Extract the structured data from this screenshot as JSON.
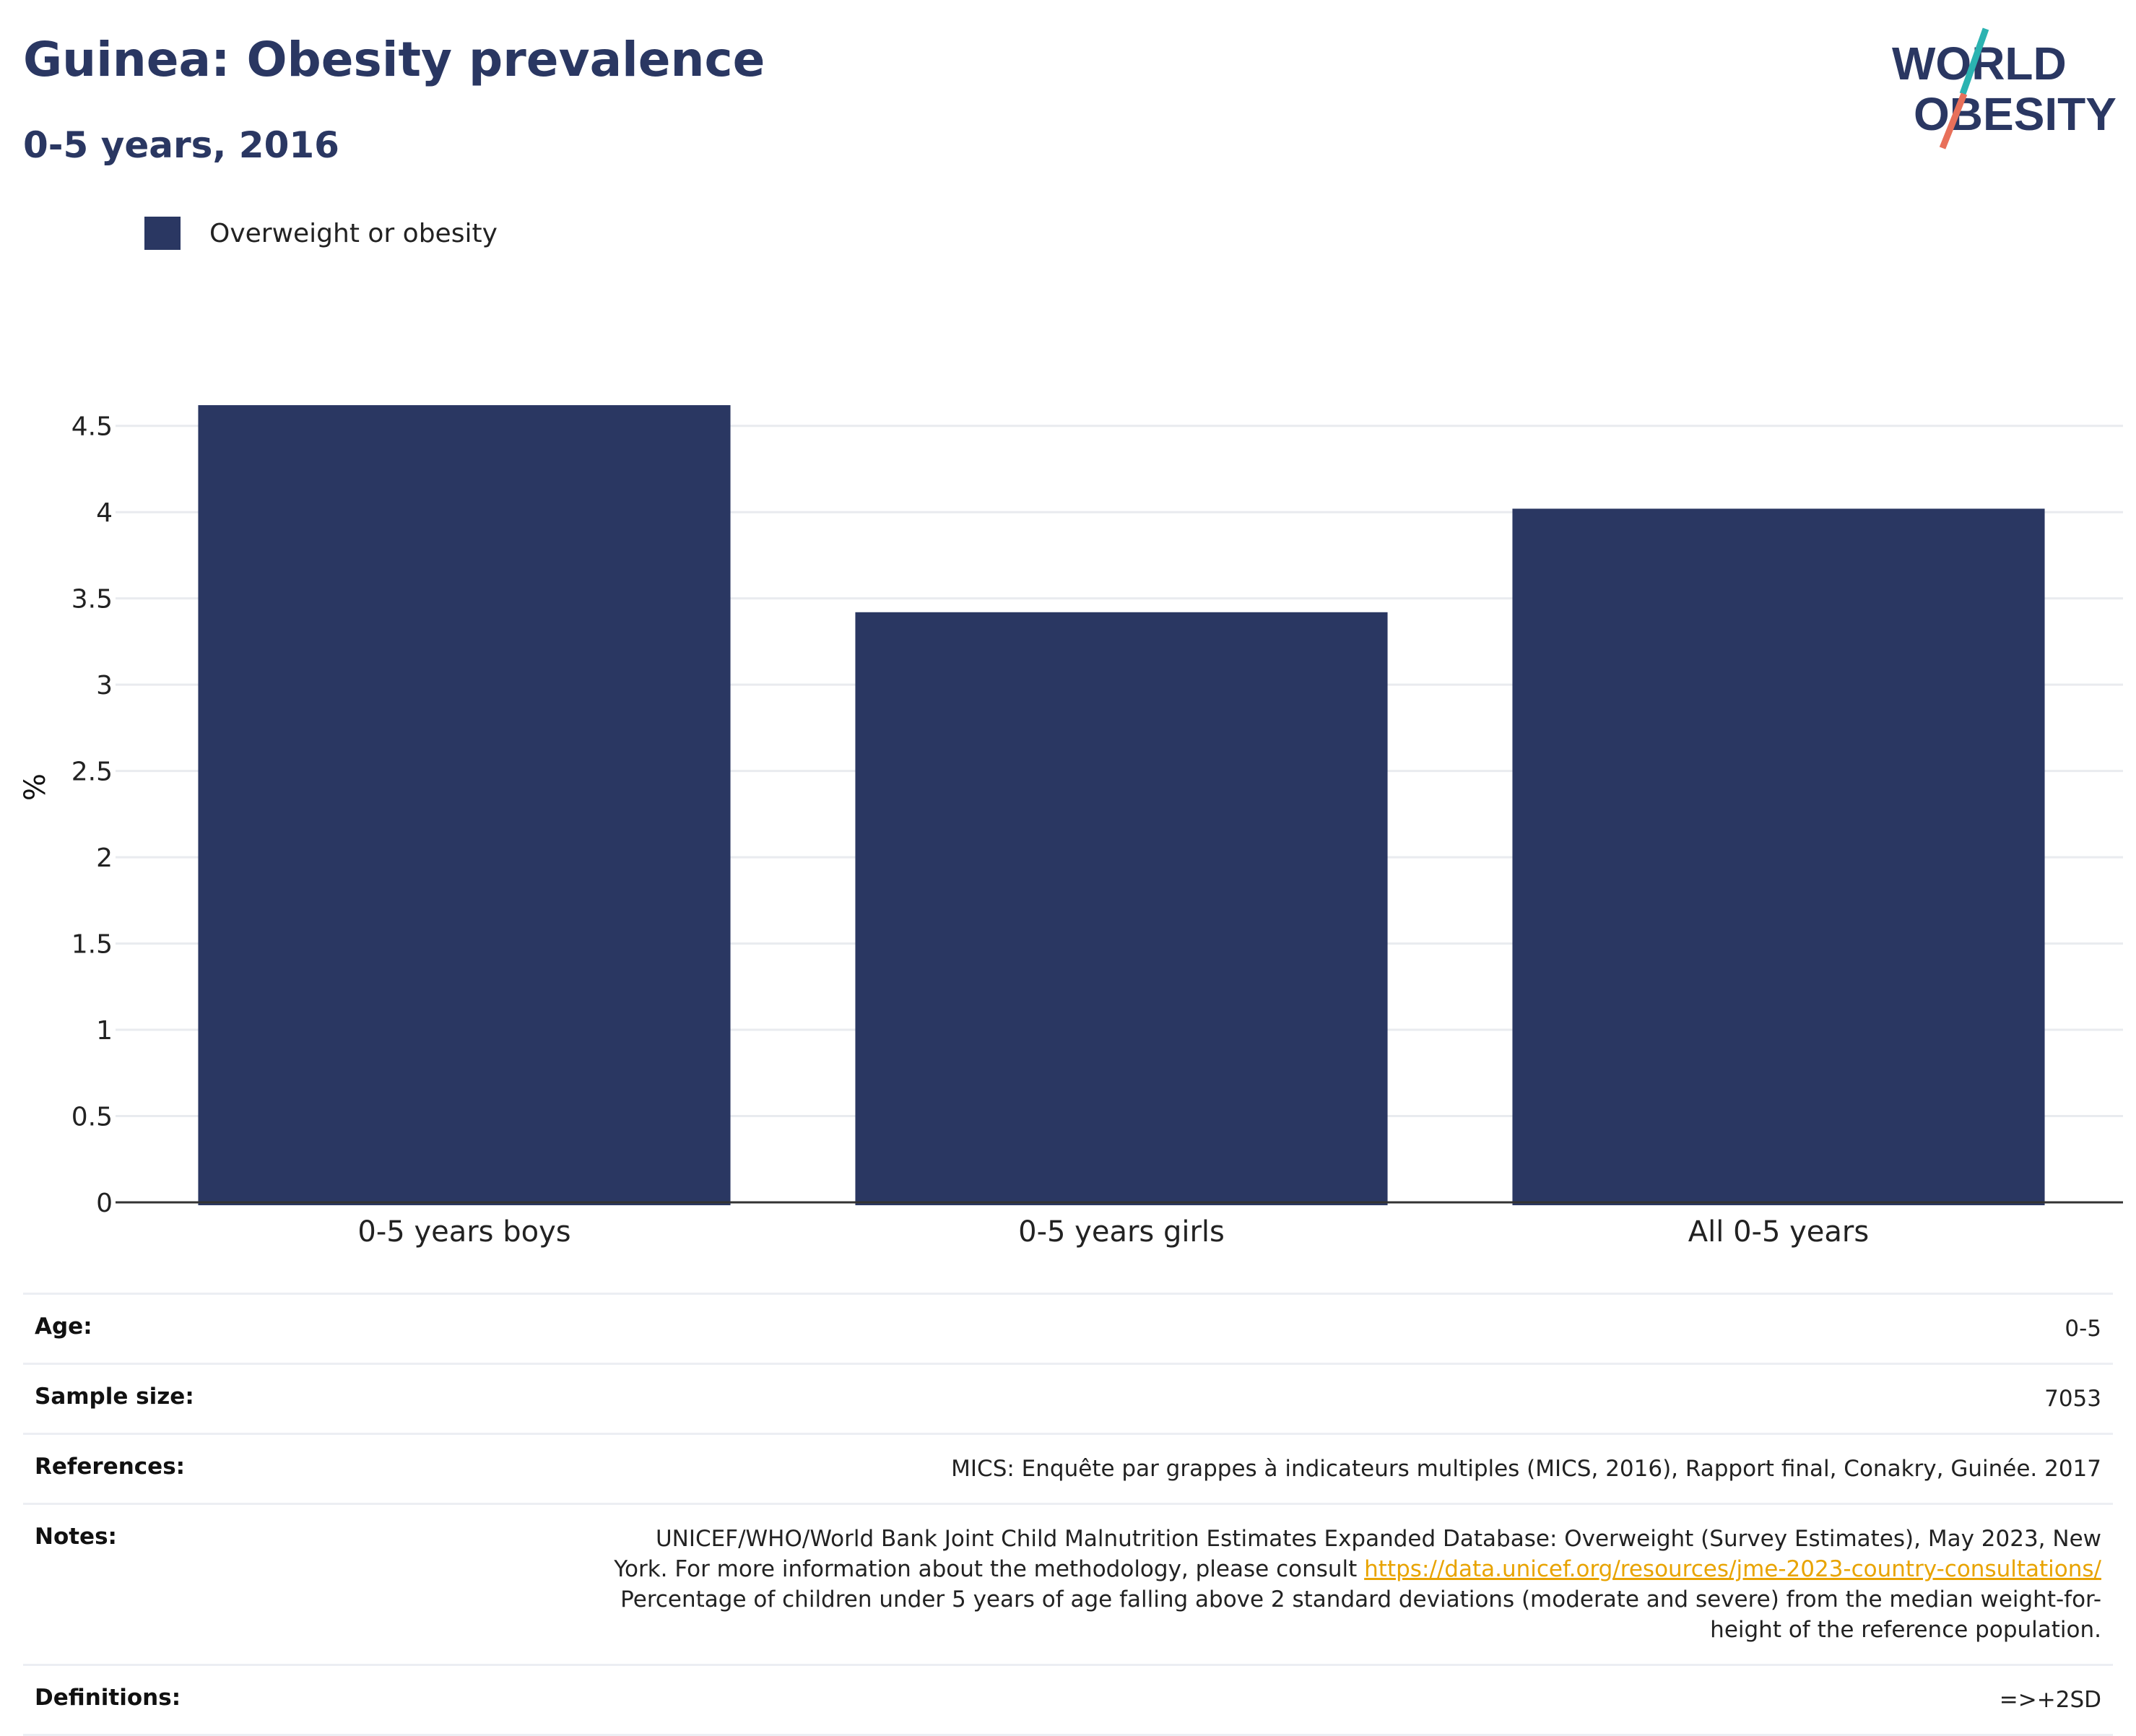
{
  "header": {
    "title": "Guinea: Obesity prevalence",
    "subtitle": "0-5 years, 2016"
  },
  "logo": {
    "line1": "WORLD",
    "line2": "OBESITY",
    "colors": {
      "navy": "#2a3762",
      "teal": "#2bb3b1",
      "coral": "#e8705a"
    }
  },
  "chart_data": {
    "type": "bar",
    "categories": [
      "0-5 years boys",
      "0-5 years girls",
      "All 0-5 years"
    ],
    "series": [
      {
        "name": "Overweight or obesity",
        "values": [
          4.62,
          3.42,
          4.02
        ],
        "color": "#2a3762"
      }
    ],
    "ylabel": "%",
    "ylim": [
      0,
      4.75
    ],
    "yticks": [
      "0",
      "0.5",
      "1",
      "1.5",
      "2",
      "2.5",
      "3",
      "3.5",
      "4",
      "4.5"
    ],
    "legend_position": "top-left",
    "grid": true
  },
  "meta": {
    "age_label": "Age:",
    "age_value": "0-5",
    "sample_label": "Sample size:",
    "sample_value": "7053",
    "references_label": "References:",
    "references_value": "MICS: Enquête par grappes à indicateurs multiples (MICS, 2016), Rapport final, Conakry, Guinée. 2017",
    "notes_label": "Notes:",
    "notes_line1": "UNICEF/WHO/World Bank Joint Child Malnutrition Estimates Expanded Database: Overweight (Survey Estimates), May 2023, New",
    "notes_line2_prefix": "York. For more information about the methodology, please consult ",
    "notes_link": "https://data.unicef.org/resources/jme-2023-country-consultations/",
    "notes_line3": "Percentage of children under 5 years of age falling above 2 standard deviations (moderate and severe) from the median weight-for-",
    "notes_line4": "height of the reference population.",
    "definitions_label": "Definitions:",
    "definitions_value": "=>+2SD"
  }
}
